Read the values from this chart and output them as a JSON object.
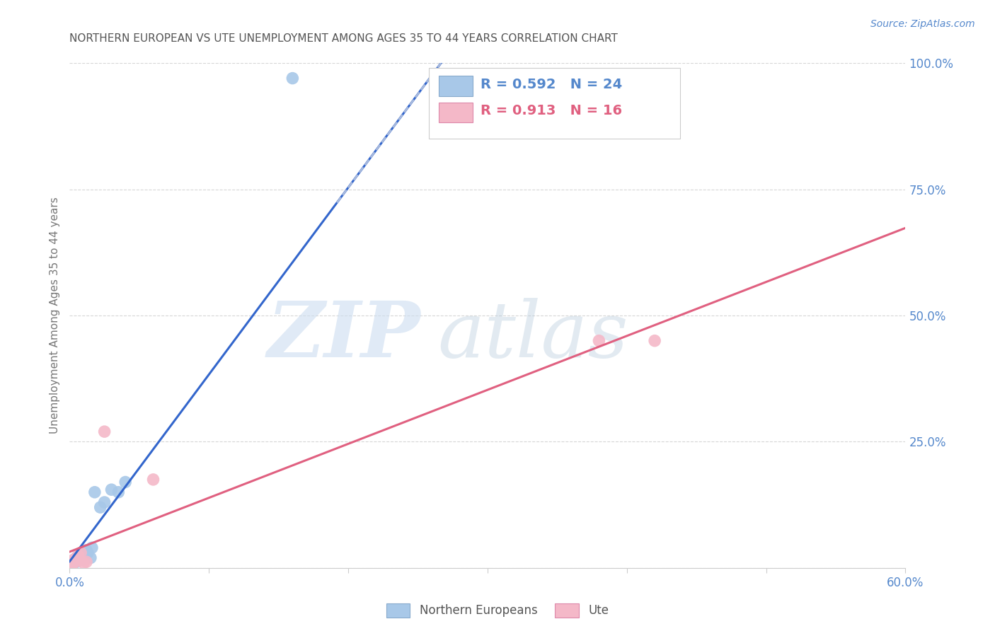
{
  "title": "NORTHERN EUROPEAN VS UTE UNEMPLOYMENT AMONG AGES 35 TO 44 YEARS CORRELATION CHART",
  "source": "Source: ZipAtlas.com",
  "ylabel": "Unemployment Among Ages 35 to 44 years",
  "xlim": [
    0.0,
    0.6
  ],
  "ylim": [
    0.0,
    1.0
  ],
  "xticks": [
    0.0,
    0.1,
    0.2,
    0.3,
    0.4,
    0.5,
    0.6
  ],
  "xticklabels": [
    "0.0%",
    "",
    "",
    "",
    "",
    "",
    "60.0%"
  ],
  "yticks": [
    0.0,
    0.25,
    0.5,
    0.75,
    1.0
  ],
  "yticklabels": [
    "",
    "25.0%",
    "50.0%",
    "75.0%",
    "100.0%"
  ],
  "ne_x": [
    0.001,
    0.002,
    0.002,
    0.003,
    0.003,
    0.004,
    0.005,
    0.006,
    0.007,
    0.008,
    0.009,
    0.01,
    0.012,
    0.013,
    0.015,
    0.016,
    0.018,
    0.022,
    0.025,
    0.03,
    0.035,
    0.04,
    0.16,
    0.31
  ],
  "ne_y": [
    0.005,
    0.008,
    0.01,
    0.01,
    0.012,
    0.015,
    0.012,
    0.018,
    0.015,
    0.02,
    0.018,
    0.025,
    0.035,
    0.03,
    0.02,
    0.04,
    0.15,
    0.12,
    0.13,
    0.155,
    0.15,
    0.17,
    0.97,
    0.97
  ],
  "ute_x": [
    0.001,
    0.002,
    0.002,
    0.003,
    0.003,
    0.004,
    0.005,
    0.006,
    0.007,
    0.008,
    0.01,
    0.012,
    0.025,
    0.06,
    0.38,
    0.42
  ],
  "ute_y": [
    0.005,
    0.008,
    0.015,
    0.01,
    0.012,
    0.018,
    0.02,
    0.025,
    0.015,
    0.03,
    0.01,
    0.012,
    0.27,
    0.175,
    0.45,
    0.45
  ],
  "ne_color": "#a8c8e8",
  "ute_color": "#f4b8c8",
  "ne_line_color": "#3366cc",
  "ute_line_color": "#e06080",
  "dashed_line_color": "#aabbdd",
  "ne_R": 0.592,
  "ne_N": 24,
  "ute_R": 0.913,
  "ute_N": 16,
  "legend_label_ne": "Northern Europeans",
  "legend_label_ute": "Ute",
  "watermark_zip": "ZIP",
  "watermark_atlas": "atlas",
  "bg_color": "#ffffff",
  "grid_color": "#cccccc",
  "label_color": "#5588cc",
  "title_color": "#555555"
}
